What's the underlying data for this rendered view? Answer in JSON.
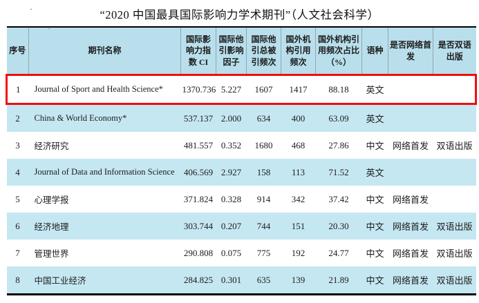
{
  "title": "“2020 中国最具国际影响力学术期刊”（人文社会科学）",
  "stray_marks": {
    "dot1": "·",
    "dot2": "."
  },
  "colors": {
    "header_bg": "#b9dfec",
    "stripe_bg": "#c5e7f2",
    "header_separator": "#90a7ae",
    "rule": "#000000",
    "highlight_red": "#f20d0d",
    "text": "#1c1c1c"
  },
  "table": {
    "columns": [
      {
        "key": "rank",
        "label": "序号"
      },
      {
        "key": "name",
        "label": "期刊名称"
      },
      {
        "key": "ci",
        "label": "国际影响力指数 CI"
      },
      {
        "key": "impact_factor",
        "label": "国际他引影响因子"
      },
      {
        "key": "total_citations",
        "label": "国际他引总被引频次"
      },
      {
        "key": "foreign_citations",
        "label": "国外机构引用频次"
      },
      {
        "key": "foreign_pct",
        "label": "国外机构引用频次占比（%）"
      },
      {
        "key": "language",
        "label": "语种"
      },
      {
        "key": "online_first",
        "label": "是否网络首发"
      },
      {
        "key": "bilingual",
        "label": "是否双语出版"
      }
    ],
    "rows": [
      {
        "rank": "1",
        "name": "Journal of Sport and Health Science*",
        "ci": "1370.736",
        "impact_factor": "5.227",
        "total_citations": "1607",
        "foreign_citations": "1417",
        "foreign_pct": "88.18",
        "language": "英文",
        "online_first": "",
        "bilingual": "",
        "highlighted": true
      },
      {
        "rank": "2",
        "name": "China & World Economy*",
        "ci": "537.137",
        "impact_factor": "2.000",
        "total_citations": "634",
        "foreign_citations": "400",
        "foreign_pct": "63.09",
        "language": "英文",
        "online_first": "",
        "bilingual": "",
        "highlighted": false
      },
      {
        "rank": "3",
        "name": "经济研究",
        "ci": "481.557",
        "impact_factor": "0.352",
        "total_citations": "1680",
        "foreign_citations": "468",
        "foreign_pct": "27.86",
        "language": "中文",
        "online_first": "网络首发",
        "bilingual": "双语出版",
        "highlighted": false
      },
      {
        "rank": "4",
        "name": "Journal of Data and Information Science",
        "ci": "406.569",
        "impact_factor": "2.927",
        "total_citations": "158",
        "foreign_citations": "113",
        "foreign_pct": "71.52",
        "language": "英文",
        "online_first": "",
        "bilingual": "",
        "highlighted": false
      },
      {
        "rank": "5",
        "name": "心理学报",
        "ci": "371.824",
        "impact_factor": "0.328",
        "total_citations": "914",
        "foreign_citations": "342",
        "foreign_pct": "37.42",
        "language": "中文",
        "online_first": "网络首发",
        "bilingual": "",
        "highlighted": false
      },
      {
        "rank": "6",
        "name": "经济地理",
        "ci": "303.744",
        "impact_factor": "0.207",
        "total_citations": "744",
        "foreign_citations": "151",
        "foreign_pct": "20.30",
        "language": "中文",
        "online_first": "网络首发",
        "bilingual": "双语出版",
        "highlighted": false
      },
      {
        "rank": "7",
        "name": "管理世界",
        "ci": "290.808",
        "impact_factor": "0.075",
        "total_citations": "775",
        "foreign_citations": "192",
        "foreign_pct": "24.77",
        "language": "中文",
        "online_first": "网络首发",
        "bilingual": "双语出版",
        "highlighted": false
      },
      {
        "rank": "8",
        "name": "中国工业经济",
        "ci": "284.825",
        "impact_factor": "0.301",
        "total_citations": "635",
        "foreign_citations": "139",
        "foreign_pct": "21.89",
        "language": "中文",
        "online_first": "网络首发",
        "bilingual": "双语出版",
        "highlighted": false
      }
    ]
  }
}
